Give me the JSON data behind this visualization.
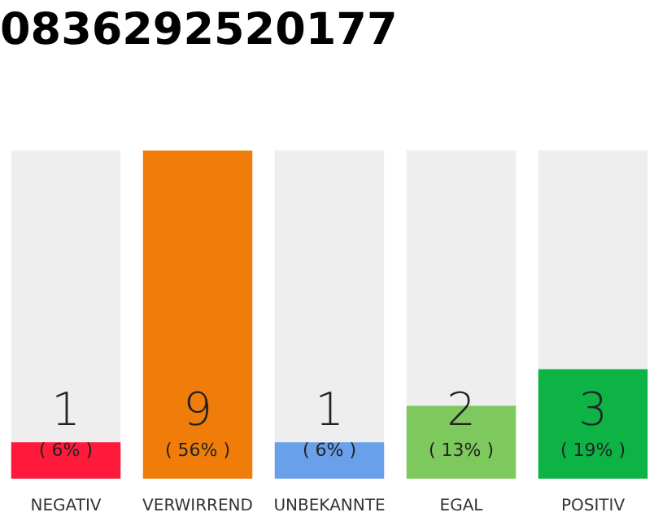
{
  "chart_data": {
    "type": "bar",
    "title": "0836292520177",
    "categories": [
      "NEGATIV",
      "VERWIRREND",
      "UNBEKANNTE",
      "EGAL",
      "POSITIV"
    ],
    "values": [
      1,
      9,
      1,
      2,
      3
    ],
    "colors": [
      "#ff1a3c",
      "#f07d0a",
      "#6aa0ea",
      "#7ec95d",
      "#0db345"
    ],
    "annotations": [
      "( 6% )",
      "( 56% )",
      "( 6% )",
      "( 13% )",
      "( 19% )"
    ],
    "data_labels": true,
    "tick_labels": "x",
    "grid": false,
    "legend": false
  }
}
